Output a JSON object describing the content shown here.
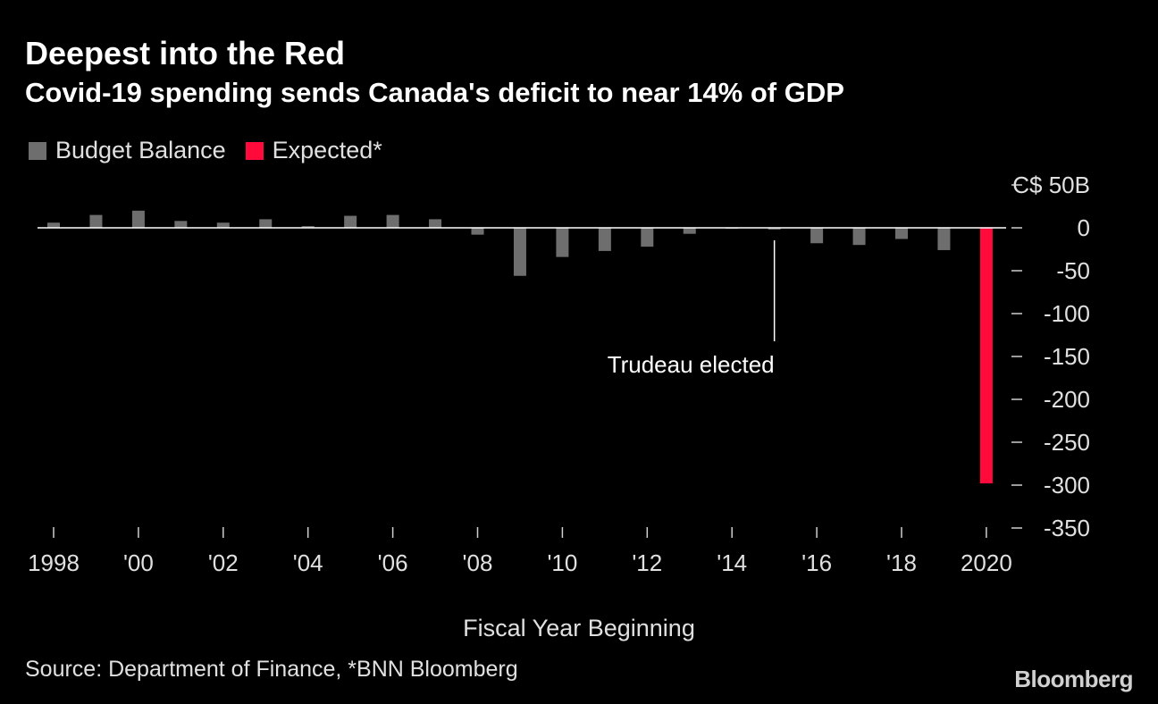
{
  "header": {
    "title": "Deepest into the Red",
    "subtitle": "Covid-19 spending sends Canada's deficit to near 14% of GDP"
  },
  "legend": [
    {
      "label": "Budget Balance",
      "color": "#6e6e6e"
    },
    {
      "label": "Expected*",
      "color": "#ff0a3a"
    }
  ],
  "footer": {
    "source": "Source: Department of Finance, *BNN Bloomberg",
    "brand": "Bloomberg"
  },
  "chart_data": {
    "type": "bar",
    "title": "Deepest into the Red",
    "subtitle": "Covid-19 spending sends Canada's deficit to near 14% of GDP",
    "xlabel": "Fiscal Year Beginning",
    "ylabel": "",
    "ylim": [
      -350,
      50
    ],
    "y_ticks": [
      {
        "value": 50,
        "label": "C$ 50B"
      },
      {
        "value": 0,
        "label": "0"
      },
      {
        "value": -50,
        "label": "-50"
      },
      {
        "value": -100,
        "label": "-100"
      },
      {
        "value": -150,
        "label": "-150"
      },
      {
        "value": -200,
        "label": "-200"
      },
      {
        "value": -250,
        "label": "-250"
      },
      {
        "value": -300,
        "label": "-300"
      },
      {
        "value": -350,
        "label": "-350"
      }
    ],
    "x_ticks": [
      {
        "year": 1998,
        "label": "1998"
      },
      {
        "year": 2000,
        "label": "'00"
      },
      {
        "year": 2002,
        "label": "'02"
      },
      {
        "year": 2004,
        "label": "'04"
      },
      {
        "year": 2006,
        "label": "'06"
      },
      {
        "year": 2008,
        "label": "'08"
      },
      {
        "year": 2010,
        "label": "'10"
      },
      {
        "year": 2012,
        "label": "'12"
      },
      {
        "year": 2014,
        "label": "'14"
      },
      {
        "year": 2016,
        "label": "'16"
      },
      {
        "year": 2018,
        "label": "'18"
      },
      {
        "year": 2020,
        "label": "2020"
      }
    ],
    "series": [
      {
        "name": "Budget Balance",
        "color": "#6e6e6e",
        "x": [
          1998,
          1999,
          2000,
          2001,
          2002,
          2003,
          2004,
          2005,
          2006,
          2007,
          2008,
          2009,
          2010,
          2011,
          2012,
          2013,
          2014,
          2015,
          2016,
          2017,
          2018,
          2019
        ],
        "values": [
          6,
          15,
          20,
          8,
          6,
          10,
          2,
          14,
          15,
          10,
          -8,
          -56,
          -34,
          -27,
          -22,
          -7,
          -1,
          -2,
          -18,
          -20,
          -13,
          -26
        ]
      },
      {
        "name": "Expected*",
        "color": "#ff0a3a",
        "x": [
          2020
        ],
        "values": [
          -298
        ]
      }
    ],
    "annotations": [
      {
        "text": "Trudeau elected",
        "year": 2015
      }
    ],
    "grid": false,
    "legend_position": "top-left"
  }
}
